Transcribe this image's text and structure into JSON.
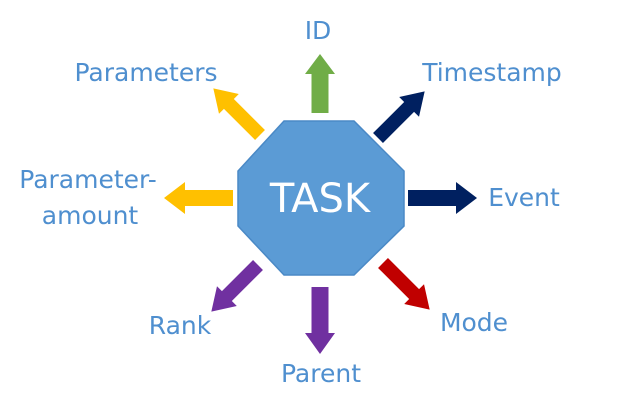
{
  "diagram": {
    "center": {
      "label": "TASK",
      "fill": "#5b9bd5",
      "stroke": "#4a89c6",
      "text_color": "#ffffff"
    },
    "label_color": "#4f8fcf",
    "nodes": [
      {
        "id": "id",
        "label": "ID",
        "arrow_color": "#70ad47",
        "icon": "arrow-up"
      },
      {
        "id": "timestamp",
        "label": "Timestamp",
        "arrow_color": "#002060",
        "icon": "arrow-up-right"
      },
      {
        "id": "event",
        "label": "Event",
        "arrow_color": "#002060",
        "icon": "arrow-right"
      },
      {
        "id": "mode",
        "label": "Mode",
        "arrow_color": "#c00000",
        "icon": "arrow-down-right"
      },
      {
        "id": "parent",
        "label": "Parent",
        "arrow_color": "#7030a0",
        "icon": "arrow-down"
      },
      {
        "id": "rank",
        "label": "Rank",
        "arrow_color": "#7030a0",
        "icon": "arrow-down-left"
      },
      {
        "id": "parameter-amount",
        "label_lines": [
          "Parameter-",
          "amount"
        ],
        "arrow_color": "#ffc000",
        "icon": "arrow-left"
      },
      {
        "id": "parameters",
        "label": "Parameters",
        "arrow_color": "#ffc000",
        "icon": "arrow-up-left"
      }
    ]
  }
}
